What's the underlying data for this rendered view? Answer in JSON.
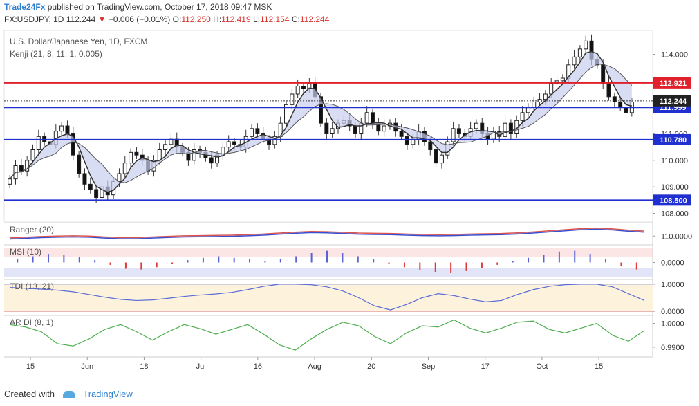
{
  "header": {
    "publisher": "Trade24Fx",
    "published_text": "published on TradingView.com, October 17, 2018 09:47 MSK",
    "symbol": "FX:USDJPY, 1D",
    "last": "112.244",
    "change": "−0.006 (−0.01%)",
    "o_label": "O:",
    "o": "112.250",
    "h_label": "H:",
    "h": "112.419",
    "l_label": "L:",
    "l": "112.154",
    "c_label": "C:",
    "c": "112.244"
  },
  "legend": {
    "instrument": "U.S. Dollar/Japanese Yen, 1D, FXCM",
    "indicator": "Kenji (21, 8, 11, 1, 0.005)"
  },
  "footer": {
    "created_with": "Created with",
    "brand": "TradingView"
  },
  "colors": {
    "up": "#444444",
    "down": "#111111",
    "red_line": "#e0202a",
    "blue_line": "#1f2fd0",
    "buy": "#5a63d6",
    "sell": "#e03a3a",
    "axis_text": "#333333"
  },
  "chart_data": [
    {
      "type": "candlestick",
      "title": "U.S. Dollar/Japanese Yen, 1D, FXCM",
      "ylim": [
        107.7,
        114.9
      ],
      "y_ticks": [
        "108.000",
        "109.000",
        "110.000",
        "111.000",
        "112.000",
        "113.000",
        "114.000"
      ],
      "x_ticks": [
        "15",
        "Jun",
        "18",
        "Jul",
        "16",
        "Aug",
        "20",
        "Sep",
        "17",
        "Oct",
        "15"
      ],
      "levels": [
        {
          "value": 112.921,
          "label": "112.921",
          "color": "#e0202a"
        },
        {
          "value": 111.999,
          "label": "111.999",
          "color": "#1f2fd0"
        },
        {
          "value": 110.78,
          "label": "110.780",
          "color": "#1f2fd0"
        },
        {
          "value": 108.5,
          "label": "108.500",
          "color": "#1f2fd0"
        }
      ],
      "last_price": {
        "value": 112.244,
        "label": "112.244"
      },
      "close": [
        109.3,
        109.8,
        109.6,
        110.0,
        110.4,
        110.9,
        110.7,
        110.6,
        111.1,
        111.3,
        111.0,
        110.2,
        109.5,
        109.1,
        108.9,
        108.6,
        109.0,
        108.7,
        109.2,
        109.5,
        109.9,
        110.3,
        110.2,
        110.0,
        109.6,
        110.0,
        110.4,
        110.6,
        110.8,
        110.5,
        110.3,
        110.0,
        110.4,
        110.3,
        110.1,
        109.9,
        110.2,
        110.5,
        110.7,
        110.6,
        110.5,
        110.9,
        111.2,
        111.0,
        110.8,
        110.6,
        110.9,
        111.4,
        112.1,
        112.5,
        112.8,
        112.7,
        112.9,
        112.4,
        111.4,
        111.0,
        111.2,
        111.4,
        111.5,
        111.3,
        111.0,
        111.4,
        111.8,
        111.4,
        111.1,
        111.3,
        111.4,
        111.1,
        110.9,
        110.6,
        110.8,
        111.1,
        110.7,
        110.4,
        109.9,
        110.2,
        110.7,
        111.2,
        111.0,
        110.9,
        111.2,
        111.4,
        111.0,
        110.8,
        111.1,
        110.9,
        111.4,
        111.0,
        111.5,
        111.8,
        112.0,
        112.2,
        112.3,
        112.5,
        112.9,
        113.0,
        113.1,
        113.6,
        113.9,
        114.2,
        114.5,
        113.8,
        113.6,
        112.9,
        112.4,
        112.2,
        112.0,
        111.8,
        112.2
      ]
    },
    {
      "type": "line",
      "title": "Ranger (20)",
      "y_ticks": [
        "110.0000"
      ],
      "ylim": [
        107,
        115
      ],
      "series": [
        {
          "values": [
            109.2,
            109.5,
            109.8,
            110.0,
            110.1,
            110.0,
            109.6,
            109.3,
            109.3,
            109.6,
            109.9,
            110.1,
            110.2,
            110.3,
            110.4,
            110.6,
            110.9,
            111.3,
            111.7,
            112.0,
            111.9,
            111.6,
            111.3,
            111.2,
            111.1,
            110.9,
            110.7,
            110.6,
            110.7,
            110.9,
            111.0,
            111.1,
            111.4,
            111.8,
            112.3,
            112.8,
            113.3,
            113.5,
            113.2,
            112.6,
            112.2
          ]
        },
        {
          "values": [
            108.7,
            109.0,
            109.3,
            109.5,
            109.6,
            109.5,
            109.1,
            108.8,
            108.8,
            109.1,
            109.4,
            109.6,
            109.7,
            109.8,
            109.9,
            110.1,
            110.4,
            110.8,
            111.2,
            111.5,
            111.4,
            111.1,
            110.8,
            110.7,
            110.6,
            110.4,
            110.2,
            110.1,
            110.2,
            110.4,
            110.5,
            110.6,
            110.9,
            111.3,
            111.8,
            112.3,
            112.8,
            113.0,
            112.7,
            112.1,
            111.7
          ]
        }
      ]
    },
    {
      "type": "bar",
      "title": "MSI (10)",
      "y_ticks": [
        "0.0000"
      ],
      "ylim": [
        -1,
        1
      ],
      "values": [
        0.2,
        0.4,
        0.55,
        0.5,
        0.35,
        0.15,
        -0.15,
        -0.4,
        -0.45,
        -0.3,
        -0.1,
        0.15,
        0.3,
        0.4,
        0.3,
        0.2,
        0.1,
        0.2,
        0.4,
        0.6,
        0.75,
        0.6,
        0.4,
        0.2,
        -0.1,
        -0.3,
        -0.5,
        -0.6,
        -0.65,
        -0.55,
        -0.35,
        -0.15,
        0.1,
        0.3,
        0.5,
        0.7,
        0.75,
        0.55,
        0.2,
        -0.2,
        -0.45
      ]
    },
    {
      "type": "line",
      "title": "TDI (13, 21)",
      "y_ticks": [
        "1.0000",
        "0.0000"
      ],
      "ylim": [
        -0.1,
        1.1
      ],
      "series": [
        {
          "values": [
            0.88,
            0.85,
            0.82,
            0.78,
            0.72,
            0.62,
            0.52,
            0.44,
            0.4,
            0.42,
            0.48,
            0.55,
            0.6,
            0.64,
            0.7,
            0.8,
            0.92,
            1.0,
            1.0,
            0.98,
            0.9,
            0.75,
            0.5,
            0.2,
            0.05,
            0.25,
            0.5,
            0.65,
            0.58,
            0.45,
            0.35,
            0.4,
            0.62,
            0.8,
            0.92,
            0.98,
            1.0,
            1.0,
            0.9,
            0.65,
            0.4
          ]
        }
      ]
    },
    {
      "type": "line",
      "title": "AR DI (8, 1)",
      "y_ticks": [
        "1.0000",
        "0.9900"
      ],
      "ylim": [
        0.9865,
        1.0025
      ],
      "series": [
        {
          "values": [
            0.9995,
            0.9985,
            0.9965,
            0.9915,
            0.9905,
            0.9935,
            0.9975,
            0.9995,
            0.9965,
            0.993,
            0.9965,
            0.9995,
            0.9978,
            0.9955,
            0.9975,
            0.9995,
            0.9955,
            0.991,
            0.9888,
            0.9935,
            0.9975,
            1.0005,
            0.999,
            0.9945,
            0.9915,
            0.996,
            0.999,
            0.9985,
            1.0015,
            0.998,
            0.996,
            0.998,
            1.0005,
            1.001,
            0.9975,
            0.996,
            0.998,
            1.0,
            0.995,
            0.9925,
            0.997
          ]
        }
      ]
    }
  ]
}
